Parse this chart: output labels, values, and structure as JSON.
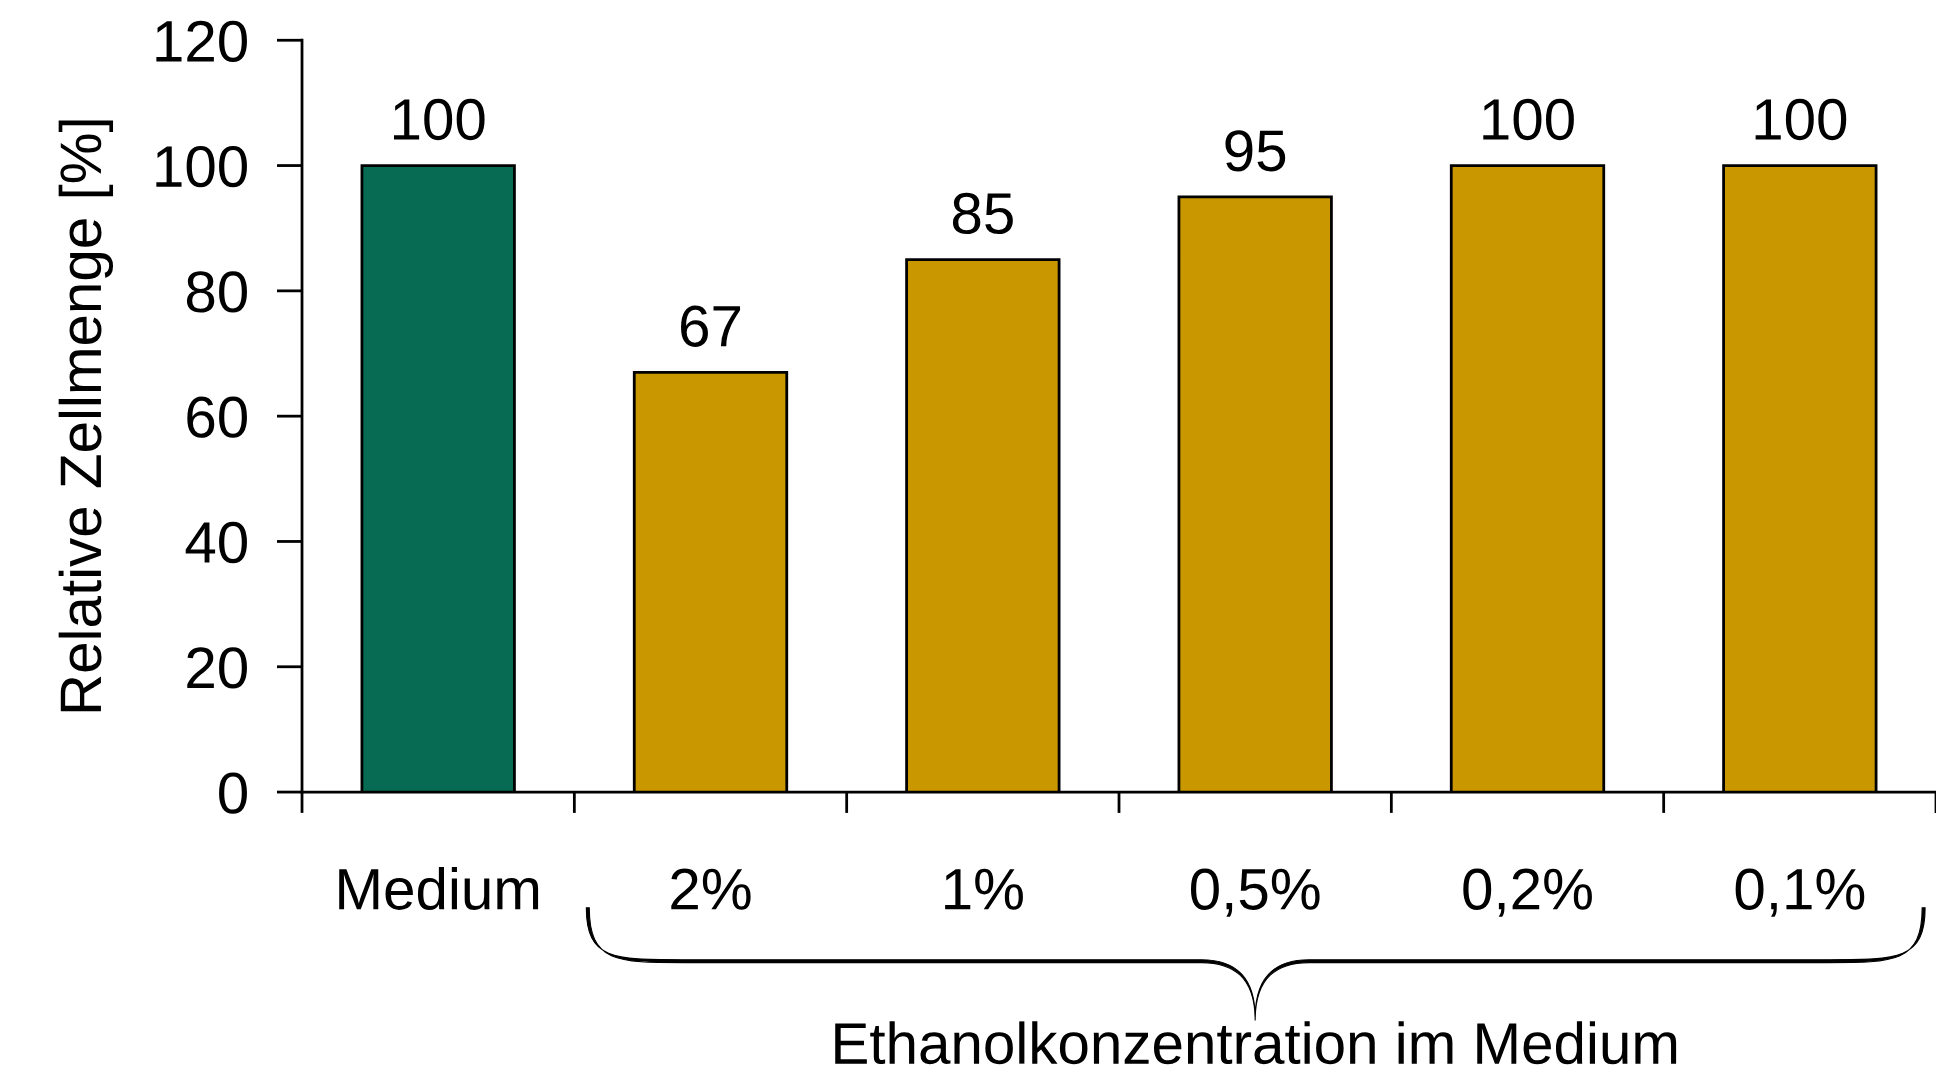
{
  "chart_data": {
    "type": "bar",
    "categories": [
      "Medium",
      "2%",
      "1%",
      "0,5%",
      "0,2%",
      "0,1%"
    ],
    "values": [
      100,
      67,
      85,
      95,
      100,
      100
    ],
    "colors": [
      "#066b52",
      "#c99700",
      "#c99700",
      "#c99700",
      "#c99700",
      "#c99700"
    ],
    "ylim": [
      0,
      120
    ],
    "yticks": [
      0,
      20,
      40,
      60,
      80,
      100,
      120
    ],
    "ylabel": "Relative Zellmenge [%]",
    "xlabel": "Ethanolkonzentration im Medium",
    "data_labels": true
  }
}
